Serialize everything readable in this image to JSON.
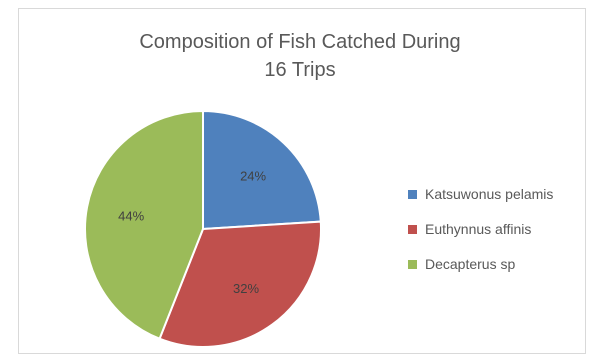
{
  "chart_data": {
    "type": "pie",
    "title_lines": [
      "Composition of Fish Catched During",
      "16 Trips"
    ],
    "categories": [
      "Katsuwonus pelamis",
      "Euthynnus affinis",
      "Decapterus sp"
    ],
    "values": [
      24,
      32,
      44
    ],
    "data_labels": [
      "24%",
      "32%",
      "44%"
    ],
    "colors": [
      "#4f81bd",
      "#c0504d",
      "#9bbb59"
    ],
    "legend_position": "right"
  }
}
